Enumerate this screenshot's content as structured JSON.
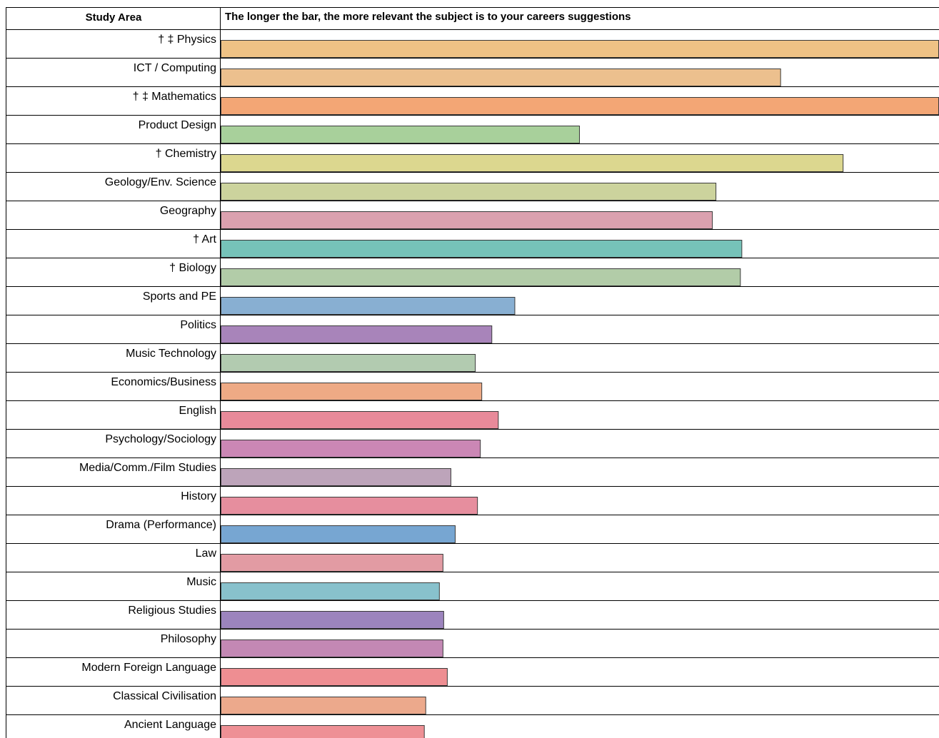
{
  "header": {
    "study_area": "Study Area",
    "description": "The longer the bar, the more relevant the subject is to your careers suggestions"
  },
  "chart_data": {
    "type": "bar",
    "orientation": "horizontal",
    "xlim": [
      0,
      100
    ],
    "grid": false,
    "categories": [
      "† ‡ Physics",
      "ICT / Computing",
      "† ‡ Mathematics",
      "Product Design",
      "† Chemistry",
      "Geology/Env. Science",
      "Geography",
      "† Art",
      "† Biology",
      "Sports and PE",
      "Politics",
      "Music Technology",
      "Economics/Business",
      "English",
      "Psychology/Sociology",
      "Media/Comm./Film Studies",
      "History",
      "Drama (Performance)",
      "Law",
      "Music",
      "Religious Studies",
      "Philosophy",
      "Modern Foreign Language",
      "Classical Civilisation",
      "Ancient Language"
    ],
    "values": [
      100,
      78,
      100,
      50,
      86.7,
      69,
      68.5,
      72.6,
      72.4,
      41,
      37.8,
      35.5,
      36.4,
      38.7,
      36.2,
      32.1,
      35.8,
      32.7,
      31,
      30.5,
      31.1,
      31,
      31.6,
      28.6,
      28.4
    ],
    "colors": [
      "#efc285",
      "#ecc08e",
      "#f3a675",
      "#a8d09b",
      "#dcd78f",
      "#ccd39d",
      "#dba1af",
      "#76c3b9",
      "#b2cca8",
      "#88afd2",
      "#a884ba",
      "#b2cbb0",
      "#eeaa85",
      "#e88a9a",
      "#cb87b5",
      "#bda4ba",
      "#e68e9e",
      "#77a6d2",
      "#e29ba3",
      "#88c1cc",
      "#9c84bd",
      "#c388b4",
      "#ee8e92",
      "#eca98c",
      "#ee9095"
    ]
  }
}
